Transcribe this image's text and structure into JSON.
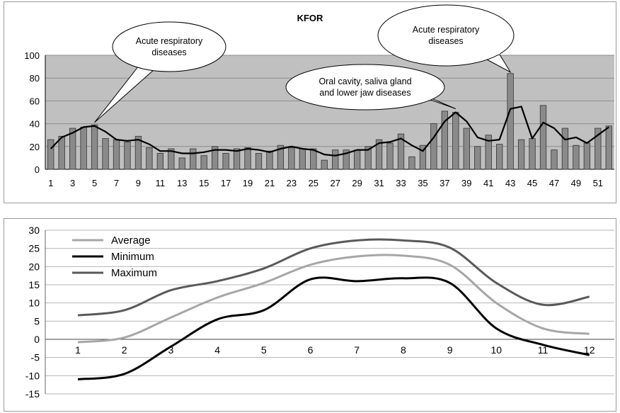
{
  "chart_data": [
    {
      "type": "bar",
      "title": "KFOR",
      "x": [
        1,
        2,
        3,
        4,
        5,
        6,
        7,
        8,
        9,
        10,
        11,
        12,
        13,
        14,
        15,
        16,
        17,
        18,
        19,
        20,
        21,
        22,
        23,
        24,
        25,
        26,
        27,
        28,
        29,
        30,
        31,
        32,
        33,
        34,
        35,
        36,
        37,
        38,
        39,
        40,
        41,
        42,
        43,
        44,
        45,
        46,
        47,
        48,
        49,
        50,
        51,
        52
      ],
      "xticks": [
        1,
        3,
        5,
        7,
        9,
        11,
        13,
        15,
        17,
        19,
        21,
        23,
        25,
        27,
        29,
        31,
        33,
        35,
        37,
        39,
        41,
        43,
        45,
        47,
        49,
        51
      ],
      "ylim": [
        0,
        100
      ],
      "yticks": [
        0,
        20,
        40,
        60,
        80,
        100
      ],
      "grid": true,
      "series": [
        {
          "values": [
            26,
            29,
            36,
            37,
            39,
            27,
            26,
            24,
            29,
            19,
            14,
            18,
            10,
            18,
            12,
            20,
            14,
            18,
            19,
            14,
            16,
            21,
            19,
            18,
            18,
            8,
            17,
            17,
            17,
            20,
            26,
            23,
            31,
            11,
            21,
            40,
            51,
            50,
            36,
            20,
            30,
            22,
            84,
            26,
            27,
            56,
            17,
            36,
            21,
            23,
            36,
            38
          ]
        },
        {
          "type": "line",
          "values": [
            18,
            28,
            32,
            37,
            38,
            33,
            26,
            25,
            26,
            22,
            16,
            16,
            14,
            14,
            15,
            17,
            17,
            16,
            18,
            17,
            15,
            18,
            20,
            18,
            17,
            13,
            12,
            14,
            17,
            17,
            23,
            24,
            27,
            21,
            16,
            28,
            42,
            50,
            42,
            28,
            25,
            26,
            53,
            55,
            27,
            41,
            36,
            26,
            28,
            23,
            30,
            37
          ]
        }
      ],
      "annotations": [
        {
          "text": [
            "Acute respiratory",
            "diseases"
          ],
          "x": 5
        },
        {
          "text": [
            "Oral cavity, saliva gland",
            "and lower jaw diseases"
          ],
          "x": 38
        },
        {
          "text": [
            "Acute respiratory",
            "diseases"
          ],
          "x": 43
        }
      ]
    },
    {
      "type": "line",
      "categories": [
        1,
        2,
        3,
        4,
        5,
        6,
        7,
        8,
        9,
        10,
        11,
        12
      ],
      "ylim": [
        -15,
        30
      ],
      "yticks": [
        -15,
        -10,
        -5,
        0,
        5,
        10,
        15,
        20,
        25,
        30
      ],
      "grid": true,
      "legend": "top-left",
      "series": [
        {
          "name": "Average",
          "color": "#a6a6a6",
          "values": [
            -0.8,
            0.5,
            6,
            11.5,
            15.5,
            20.5,
            22.8,
            23,
            20.5,
            10,
            3,
            1.5
          ]
        },
        {
          "name": "Minimum",
          "color": "#000000",
          "values": [
            -11,
            -9.5,
            -2,
            5.5,
            8,
            16.5,
            16,
            16.8,
            15.5,
            3,
            -1.5,
            -4.3
          ]
        },
        {
          "name": "Maximum",
          "color": "#595959",
          "values": [
            6.6,
            8,
            13.5,
            16,
            19.5,
            25,
            27.2,
            27.2,
            25.2,
            15.5,
            9.5,
            11.7
          ]
        }
      ]
    }
  ]
}
